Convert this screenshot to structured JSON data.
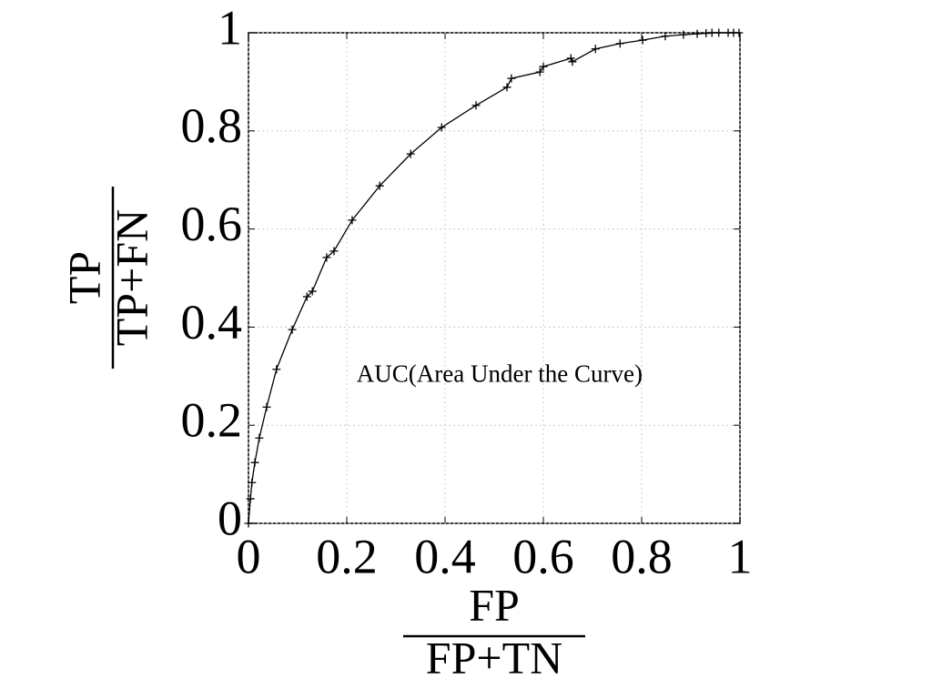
{
  "chart_data": {
    "type": "line",
    "xlabel": {
      "numerator": "FP",
      "denominator": "FP+TN"
    },
    "ylabel": {
      "numerator": "TP",
      "denominator": "TP+FN"
    },
    "annotation": {
      "text": "AUC(Area Under the Curve)",
      "x": 0.22,
      "y": 0.3
    },
    "series": [
      {
        "color": "#000000",
        "marker": "+",
        "x": [
          0,
          0.004,
          0.007,
          0.013,
          0.022,
          0.037,
          0.057,
          0.089,
          0.119,
          0.13,
          0.159,
          0.174,
          0.211,
          0.267,
          0.33,
          0.393,
          0.463,
          0.526,
          0.535,
          0.593,
          0.6,
          0.656,
          0.659,
          0.706,
          0.756,
          0.802,
          0.848,
          0.885,
          0.913,
          0.931,
          0.943,
          0.957,
          0.976,
          0.987,
          0.998
        ],
        "values": [
          0,
          0.05,
          0.083,
          0.124,
          0.174,
          0.237,
          0.314,
          0.395,
          0.462,
          0.473,
          0.542,
          0.555,
          0.618,
          0.688,
          0.753,
          0.807,
          0.852,
          0.889,
          0.907,
          0.92,
          0.931,
          0.948,
          0.941,
          0.967,
          0.978,
          0.985,
          0.993,
          0.996,
          0.998,
          0.999,
          1,
          1,
          1,
          1,
          1
        ]
      }
    ],
    "xlim": [
      0,
      1
    ],
    "ylim": [
      0,
      1
    ],
    "xticks": [
      0,
      0.2,
      0.4,
      0.6,
      0.8,
      1
    ],
    "yticks": [
      0,
      0.2,
      0.4,
      0.6,
      0.8,
      1
    ],
    "grid": true
  }
}
